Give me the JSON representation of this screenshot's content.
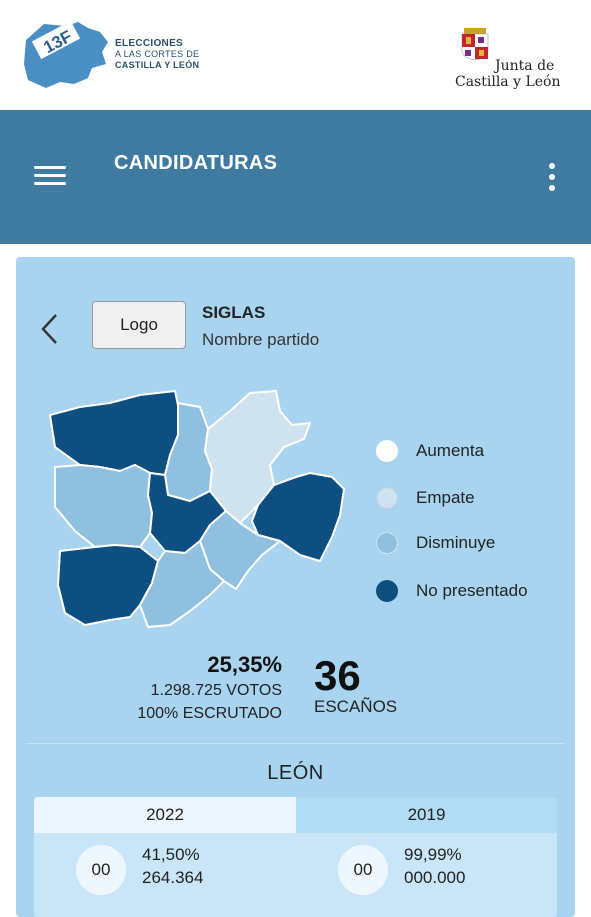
{
  "header": {
    "logo_badge": "13F",
    "logo_line1": "ELECCIONES",
    "logo_line2": "A LAS CORTES DE",
    "logo_line3": "CASTILLA Y LEÓN",
    "junta_line1": "Junta de",
    "junta_line2": "Castilla y León"
  },
  "appbar": {
    "title": "CANDIDATURAS"
  },
  "party": {
    "logo_label": "Logo",
    "acronym": "SIGLAS",
    "name": "Nombre partido"
  },
  "legend": [
    {
      "label": "Aumenta",
      "color": "#ffffff"
    },
    {
      "label": "Empate",
      "color": "#cfe2ef"
    },
    {
      "label": "Disminuye",
      "color": "#8fc0e0"
    },
    {
      "label": "No presentado",
      "color": "#0d4f80"
    }
  ],
  "summary": {
    "percentage": "25,35%",
    "votes": "1.298.725 VOTOS",
    "scrutinized": "100% ESCRUTADO",
    "seats": "36",
    "seats_label": "ESCAÑOS"
  },
  "region": {
    "name": "LEÓN"
  },
  "results": [
    {
      "year": "2022",
      "seats": "00",
      "percentage": "41,50%",
      "votes": "264.364"
    },
    {
      "year": "2019",
      "seats": "00",
      "percentage": "99,99%",
      "votes": "000.000"
    }
  ],
  "colors": {
    "appbar": "#3f7aa0",
    "card": "#a9d4f0",
    "dark_province": "#0d4f80"
  }
}
